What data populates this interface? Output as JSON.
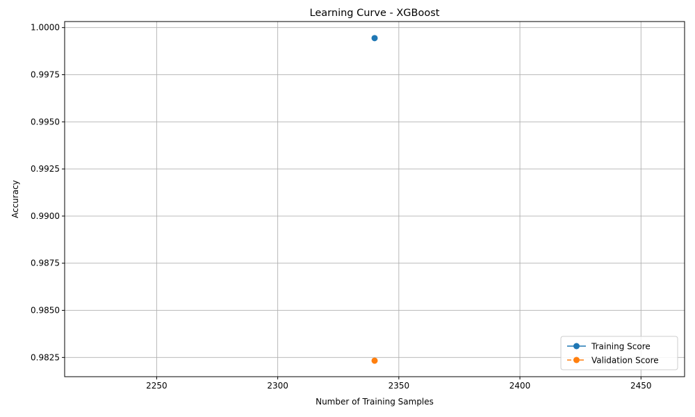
{
  "chart_data": {
    "type": "line",
    "title": "Learning Curve - XGBoost",
    "xlabel": "Number of Training Samples",
    "ylabel": "Accuracy",
    "xlim": [
      2212,
      2468
    ],
    "ylim": [
      0.98148,
      1.00032
    ],
    "xticks": [
      2250,
      2300,
      2350,
      2400,
      2450
    ],
    "xtick_labels": [
      "2250",
      "2300",
      "2350",
      "2400",
      "2450"
    ],
    "yticks": [
      0.9825,
      0.985,
      0.9875,
      0.99,
      0.9925,
      0.995,
      0.9975,
      1.0
    ],
    "ytick_labels": [
      "0.9825",
      "0.9850",
      "0.9875",
      "0.9900",
      "0.9925",
      "0.9950",
      "0.9975",
      "1.0000"
    ],
    "grid": true,
    "legend_position": "lower-right",
    "series": [
      {
        "name": "Training Score",
        "x": [
          2340
        ],
        "y": [
          0.99944
        ],
        "color": "#1f77b4",
        "linestyle": "solid",
        "marker": "circle"
      },
      {
        "name": "Validation Score",
        "x": [
          2340
        ],
        "y": [
          0.98233
        ],
        "color": "#ff7f0e",
        "linestyle": "dashed",
        "marker": "circle"
      }
    ]
  }
}
